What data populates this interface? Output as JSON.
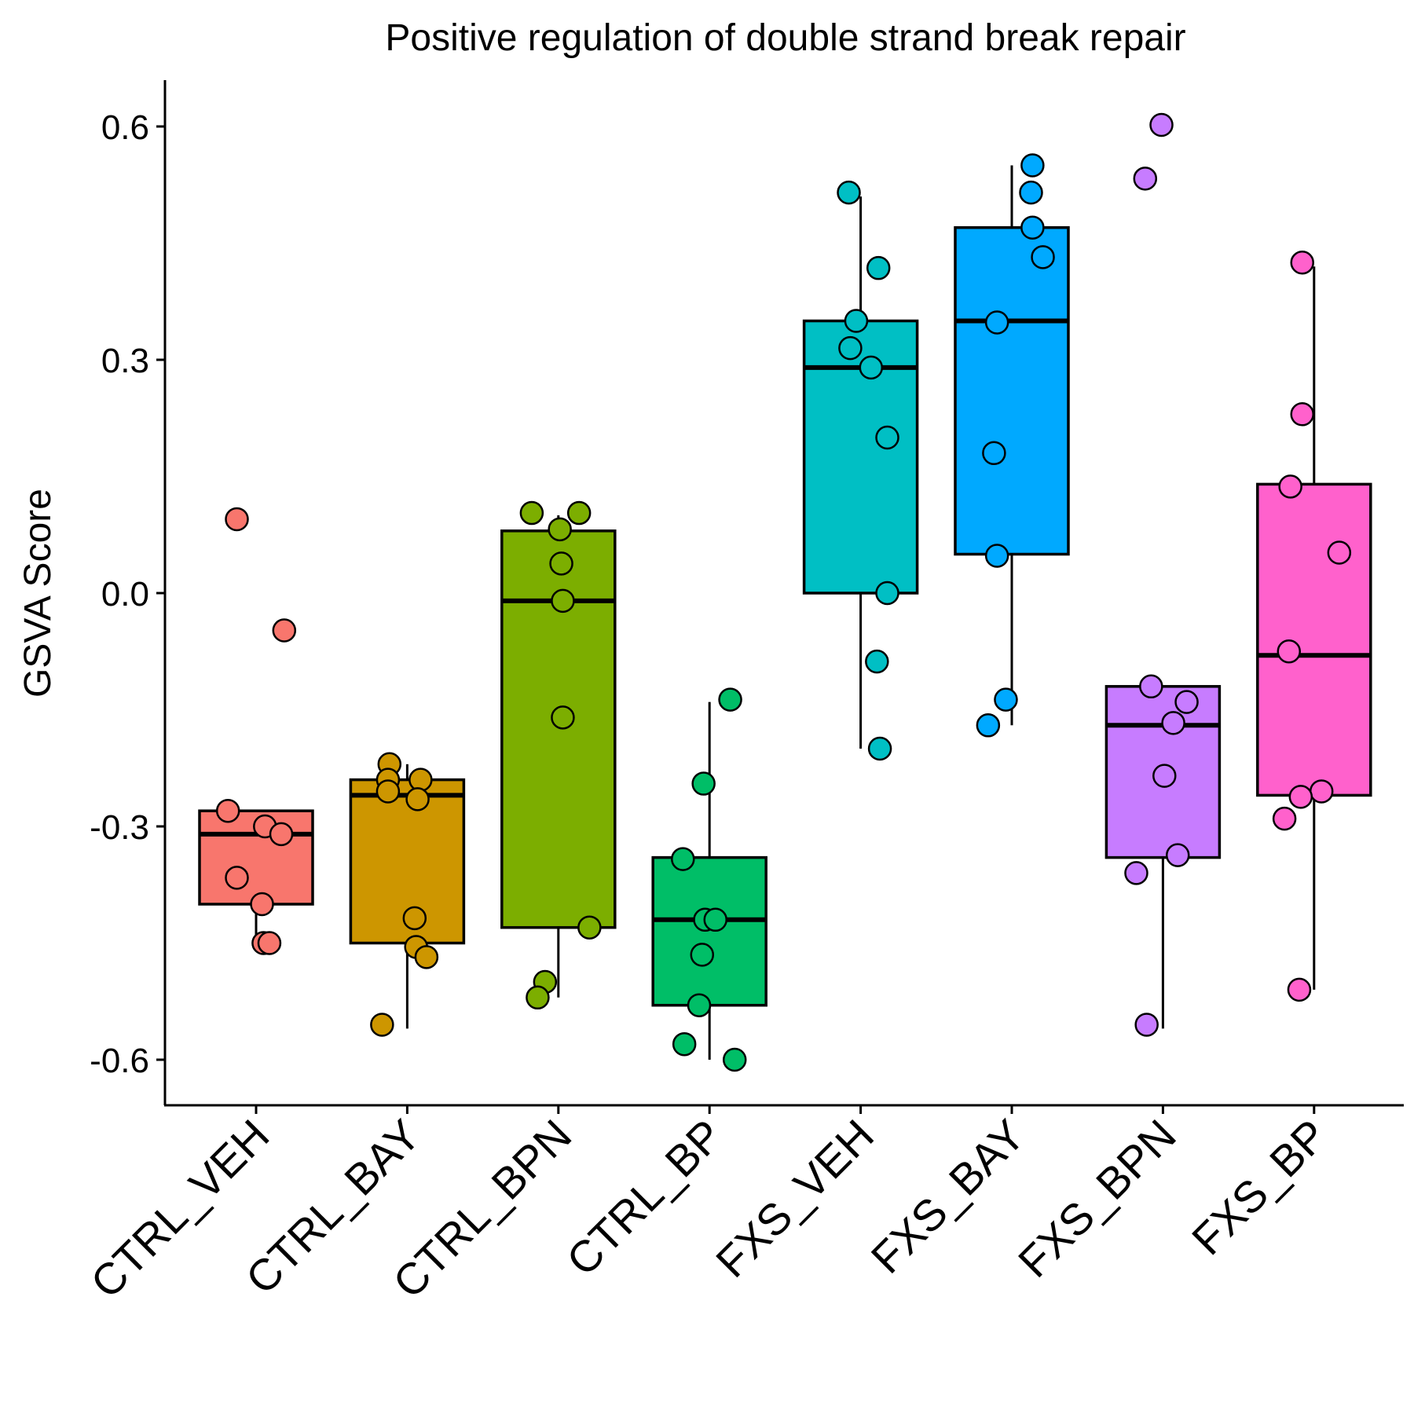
{
  "chart_data": {
    "type": "box",
    "title": "Positive regulation of double strand break repair",
    "xlabel": "",
    "ylabel": "GSVA Score",
    "ylim": [
      -0.66,
      0.66
    ],
    "yticks": [
      "0.6",
      "0.3",
      "0.0",
      "-0.3",
      "-0.6"
    ],
    "grid": false,
    "legend": "none",
    "categories": [
      "CTRL_VEH",
      "CTRL_BAY",
      "CTRL_BPN",
      "CTRL_BP",
      "FXS_VEH",
      "FXS_BAY",
      "FXS_BPN",
      "FXS_BP"
    ],
    "colors": [
      "#F8766D",
      "#CD9600",
      "#7CAE00",
      "#00BE67",
      "#00BFC4",
      "#00A9FF",
      "#C77CFF",
      "#FF61CC"
    ],
    "boxes": [
      {
        "q1": -0.4,
        "median": -0.31,
        "q3": -0.28,
        "whisker_low": -0.45,
        "whisker_high": -0.28
      },
      {
        "q1": -0.45,
        "median": -0.26,
        "q3": -0.24,
        "whisker_low": -0.56,
        "whisker_high": -0.22
      },
      {
        "q1": -0.43,
        "median": -0.01,
        "q3": 0.08,
        "whisker_low": -0.52,
        "whisker_high": 0.1
      },
      {
        "q1": -0.53,
        "median": -0.42,
        "q3": -0.34,
        "whisker_low": -0.6,
        "whisker_high": -0.14
      },
      {
        "q1": 0.0,
        "median": 0.29,
        "q3": 0.35,
        "whisker_low": -0.2,
        "whisker_high": 0.51
      },
      {
        "q1": 0.05,
        "median": 0.35,
        "q3": 0.47,
        "whisker_low": -0.17,
        "whisker_high": 0.55
      },
      {
        "q1": -0.34,
        "median": -0.17,
        "q3": -0.12,
        "whisker_low": -0.56,
        "whisker_high": -0.12
      },
      {
        "q1": -0.26,
        "median": -0.08,
        "q3": 0.14,
        "whisker_low": -0.51,
        "whisker_high": 0.42
      }
    ],
    "points": [
      [
        {
          "j": -0.13,
          "y": 0.095
        },
        {
          "j": 0.19,
          "y": -0.048
        },
        {
          "j": -0.19,
          "y": -0.28
        },
        {
          "j": 0.06,
          "y": -0.3
        },
        {
          "j": 0.17,
          "y": -0.31
        },
        {
          "j": -0.13,
          "y": -0.366
        },
        {
          "j": 0.04,
          "y": -0.4
        },
        {
          "j": 0.05,
          "y": -0.45
        },
        {
          "j": 0.09,
          "y": -0.45
        }
      ],
      [
        {
          "j": -0.12,
          "y": -0.22
        },
        {
          "j": -0.13,
          "y": -0.24
        },
        {
          "j": 0.09,
          "y": -0.24
        },
        {
          "j": -0.13,
          "y": -0.255
        },
        {
          "j": 0.07,
          "y": -0.265
        },
        {
          "j": 0.05,
          "y": -0.418
        },
        {
          "j": 0.06,
          "y": -0.455
        },
        {
          "j": 0.13,
          "y": -0.468
        },
        {
          "j": -0.17,
          "y": -0.555
        }
      ],
      [
        {
          "j": -0.18,
          "y": 0.103
        },
        {
          "j": 0.14,
          "y": 0.103
        },
        {
          "j": 0.01,
          "y": 0.082
        },
        {
          "j": 0.02,
          "y": 0.038
        },
        {
          "j": 0.03,
          "y": -0.01
        },
        {
          "j": 0.03,
          "y": -0.16
        },
        {
          "j": 0.21,
          "y": -0.43
        },
        {
          "j": -0.09,
          "y": -0.5
        },
        {
          "j": -0.14,
          "y": -0.52
        }
      ],
      [
        {
          "j": 0.14,
          "y": -0.137
        },
        {
          "j": -0.04,
          "y": -0.245
        },
        {
          "j": -0.18,
          "y": -0.342
        },
        {
          "j": -0.03,
          "y": -0.42
        },
        {
          "j": 0.04,
          "y": -0.42
        },
        {
          "j": -0.05,
          "y": -0.465
        },
        {
          "j": -0.07,
          "y": -0.53
        },
        {
          "j": -0.17,
          "y": -0.58
        },
        {
          "j": 0.17,
          "y": -0.6
        }
      ],
      [
        {
          "j": -0.08,
          "y": 0.515
        },
        {
          "j": 0.12,
          "y": 0.418
        },
        {
          "j": -0.03,
          "y": 0.35
        },
        {
          "j": -0.07,
          "y": 0.315
        },
        {
          "j": 0.07,
          "y": 0.29
        },
        {
          "j": 0.18,
          "y": 0.2
        },
        {
          "j": 0.18,
          "y": 0.0
        },
        {
          "j": 0.11,
          "y": -0.088
        },
        {
          "j": 0.13,
          "y": -0.2
        }
      ],
      [
        {
          "j": 0.14,
          "y": 0.55
        },
        {
          "j": 0.13,
          "y": 0.515
        },
        {
          "j": 0.14,
          "y": 0.47
        },
        {
          "j": 0.21,
          "y": 0.432
        },
        {
          "j": -0.1,
          "y": 0.348
        },
        {
          "j": -0.12,
          "y": 0.18
        },
        {
          "j": -0.1,
          "y": 0.048
        },
        {
          "j": -0.04,
          "y": -0.137
        },
        {
          "j": -0.16,
          "y": -0.17
        }
      ],
      [
        {
          "j": -0.01,
          "y": 0.602
        },
        {
          "j": -0.12,
          "y": 0.533
        },
        {
          "j": -0.08,
          "y": -0.12
        },
        {
          "j": 0.16,
          "y": -0.14
        },
        {
          "j": 0.07,
          "y": -0.167
        },
        {
          "j": 0.01,
          "y": -0.235
        },
        {
          "j": 0.1,
          "y": -0.337
        },
        {
          "j": -0.18,
          "y": -0.36
        },
        {
          "j": -0.11,
          "y": -0.555
        }
      ],
      [
        {
          "j": -0.08,
          "y": 0.425
        },
        {
          "j": -0.08,
          "y": 0.23
        },
        {
          "j": -0.16,
          "y": 0.137
        },
        {
          "j": 0.17,
          "y": 0.052
        },
        {
          "j": -0.17,
          "y": -0.075
        },
        {
          "j": 0.05,
          "y": -0.255
        },
        {
          "j": -0.09,
          "y": -0.262
        },
        {
          "j": -0.2,
          "y": -0.29
        },
        {
          "j": -0.1,
          "y": -0.51
        }
      ]
    ]
  }
}
